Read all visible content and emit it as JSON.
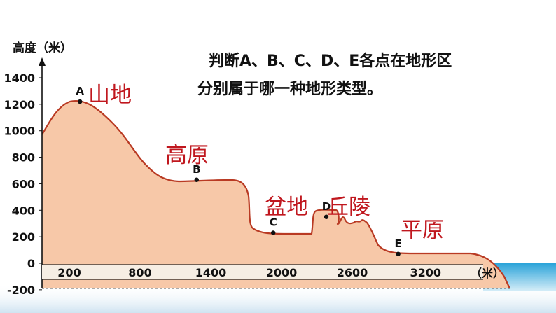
{
  "chart": {
    "y_title": "高度（米）",
    "y_ticks": [
      1400,
      1200,
      1000,
      800,
      600,
      400,
      200,
      0,
      -200
    ],
    "x_ticks": [
      200,
      800,
      1400,
      2000,
      2600,
      3200
    ],
    "x_unit": "（米）"
  },
  "question": {
    "line1": "判断A、B、C、D、E各点在地形区",
    "line2": "分别属于哪一种地形类型。"
  },
  "points": [
    {
      "label": "A",
      "x": 290,
      "y": 1220
    },
    {
      "label": "B",
      "x": 1280,
      "y": 630
    },
    {
      "label": "C",
      "x": 1930,
      "y": 230
    },
    {
      "label": "D",
      "x": 2380,
      "y": 350
    },
    {
      "label": "E",
      "x": 2990,
      "y": 70
    }
  ],
  "answers": {
    "a": "山地",
    "b": "高原",
    "c": "盆地",
    "d": "丘陵",
    "e": "平原"
  },
  "colors": {
    "terrain_fill": "#f7c8a8",
    "terrain_line": "#b93a23",
    "answer": "#c0171e",
    "sea_top": "#2aa3d9",
    "sea_bottom": "#d7eef8"
  }
}
